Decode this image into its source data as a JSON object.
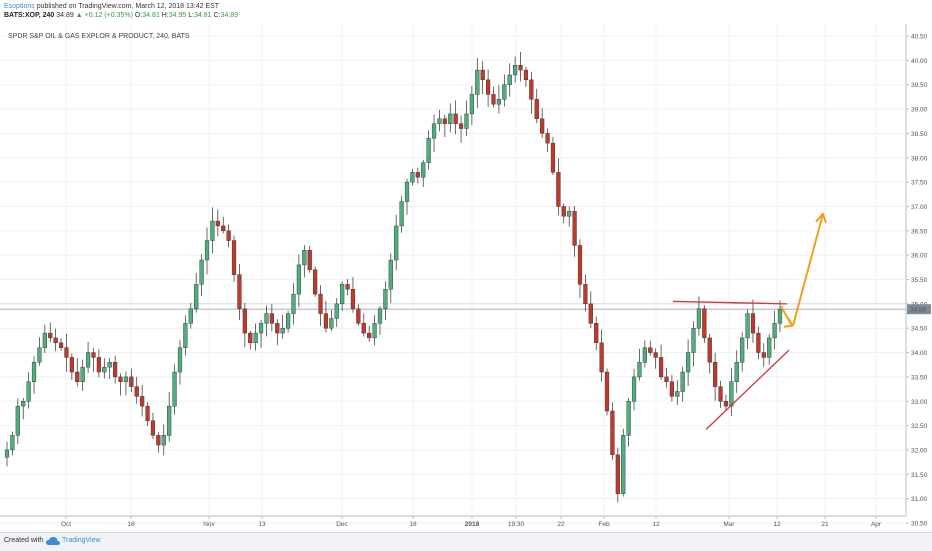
{
  "header": {
    "author": "Esoptions",
    "published": " published on TradingView.com, March 12, 2018 13:42 EST",
    "symbol": "BATS:XOP, 240",
    "last": "34.89",
    "change": "▲ +0.12 (+0.35%)",
    "o_label": "O:",
    "o_val": "34.81",
    "h_label": "H:",
    "h_val": "34.95",
    "l_label": "L:",
    "l_val": "34.81",
    "c_label": "C:",
    "c_val": "34.89"
  },
  "footer": {
    "created": "Created with",
    "brand": "TradingView"
  },
  "chart_data": {
    "type": "candlestick",
    "title": "SPDR S&P OIL & GAS EXPLOR & PRODUCT, 240, BATS",
    "ylim": [
      30.3,
      40.6
    ],
    "yticks": [
      "30.50",
      "31.00",
      "31.50",
      "32.00",
      "32.50",
      "33.00",
      "33.50",
      "34.00",
      "34.50",
      "35.00",
      "35.50",
      "36.00",
      "36.50",
      "37.00",
      "37.50",
      "38.00",
      "38.50",
      "39.00",
      "39.50",
      "40.00",
      "40.50"
    ],
    "xticks": [
      "Oct",
      "16",
      "Nov",
      "13",
      "Dec",
      "18",
      "2018",
      "19:30",
      "22",
      "Feb",
      "12",
      "Mar",
      "12",
      "21",
      "Apr"
    ],
    "price_label": "34.89",
    "up_color": "#4caf7d",
    "down_color": "#c0392b",
    "overlay_color": "#f0a020",
    "closes": [
      32.0,
      32.3,
      32.9,
      33.0,
      33.4,
      33.8,
      34.1,
      34.4,
      34.3,
      34.2,
      34.1,
      33.9,
      33.6,
      33.4,
      33.7,
      34.0,
      33.9,
      33.6,
      33.7,
      33.8,
      33.5,
      33.4,
      33.5,
      33.3,
      33.1,
      32.9,
      32.6,
      32.3,
      32.1,
      32.3,
      32.9,
      33.6,
      34.1,
      34.6,
      34.9,
      35.4,
      35.9,
      36.3,
      36.7,
      36.6,
      36.5,
      36.3,
      35.6,
      34.9,
      34.4,
      34.2,
      34.4,
      34.6,
      34.8,
      34.6,
      34.4,
      34.5,
      34.8,
      35.2,
      35.8,
      36.1,
      35.7,
      35.2,
      34.8,
      34.5,
      34.7,
      35.0,
      35.4,
      35.3,
      34.9,
      34.6,
      34.4,
      34.3,
      34.6,
      34.9,
      35.3,
      35.9,
      36.6,
      37.1,
      37.5,
      37.7,
      37.6,
      37.9,
      38.4,
      38.7,
      38.8,
      38.7,
      38.9,
      38.7,
      38.6,
      38.9,
      39.3,
      39.8,
      39.6,
      39.3,
      39.1,
      39.2,
      39.5,
      39.7,
      39.9,
      39.8,
      39.6,
      39.2,
      38.8,
      38.5,
      38.3,
      37.7,
      37.0,
      36.8,
      36.9,
      36.2,
      35.4,
      35.0,
      34.6,
      34.2,
      33.6,
      32.8,
      31.9,
      31.1,
      32.3,
      33.0,
      33.5,
      33.8,
      34.1,
      34.0,
      33.9,
      33.5,
      33.4,
      33.1,
      33.2,
      33.6,
      34.0,
      34.5,
      34.9,
      34.3,
      33.8,
      33.3,
      33.0,
      32.9,
      33.4,
      33.8,
      34.3,
      34.8,
      34.4,
      34.0,
      33.9,
      34.3,
      34.6,
      34.89
    ],
    "annotations": [
      {
        "type": "resistance_line",
        "from": [
          "2018-02-27",
          35.05
        ],
        "to": [
          "2018-03-13",
          35.0
        ],
        "color": "#d03a3a"
      },
      {
        "type": "support_line",
        "from": [
          "2018-02-22",
          32.5
        ],
        "to": [
          "2018-03-15",
          34.1
        ],
        "color": "#d03a3a"
      },
      {
        "type": "arrow_down",
        "from": [
          "2018-03-13",
          34.95
        ],
        "to": [
          "2018-03-14",
          34.55
        ],
        "color": "#f0a020"
      },
      {
        "type": "arrow_up",
        "from": [
          "2018-03-14",
          34.55
        ],
        "to": [
          "2018-03-17",
          36.85
        ],
        "color": "#f0a020"
      }
    ]
  }
}
